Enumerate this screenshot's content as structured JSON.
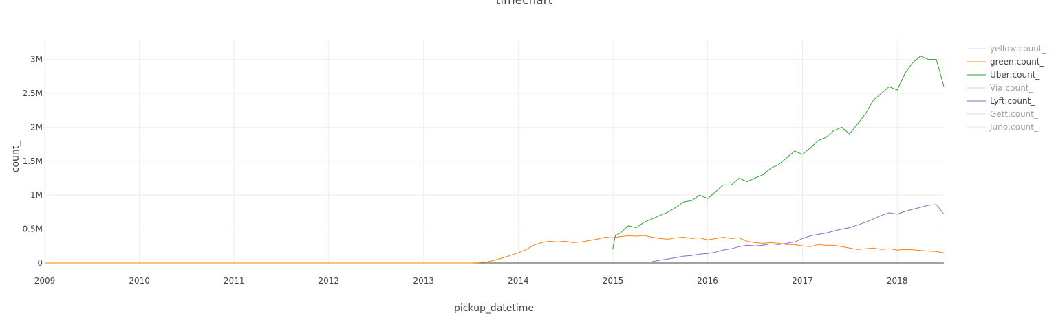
{
  "chart_data": {
    "type": "line",
    "title": "timechart",
    "xlabel": "pickup_datetime",
    "ylabel": "count_",
    "xlim": [
      "2009-01-01",
      "2018-06-30"
    ],
    "ylim": [
      0,
      3300000
    ],
    "x_ticks": [
      "2009",
      "2010",
      "2011",
      "2012",
      "2013",
      "2014",
      "2015",
      "2016",
      "2017",
      "2018"
    ],
    "y_ticks": [
      {
        "value": 0,
        "label": "0"
      },
      {
        "value": 500000,
        "label": "0.5M"
      },
      {
        "value": 1000000,
        "label": "1M"
      },
      {
        "value": 1500000,
        "label": "1.5M"
      },
      {
        "value": 2000000,
        "label": "2M"
      },
      {
        "value": 2500000,
        "label": "2.5M"
      },
      {
        "value": 3000000,
        "label": "3M"
      }
    ],
    "grid": true,
    "legend_position": "right",
    "series": [
      {
        "name": "yellow:count_",
        "color": "#1f77b4",
        "visible": false,
        "points": []
      },
      {
        "name": "green:count_",
        "color": "#ff7f0e",
        "visible": true,
        "points": [
          [
            "2009-01-01",
            0
          ],
          [
            "2013-07-01",
            0
          ],
          [
            "2013-08-01",
            4000
          ],
          [
            "2013-09-01",
            15000
          ],
          [
            "2013-10-01",
            40000
          ],
          [
            "2013-11-01",
            75000
          ],
          [
            "2013-12-01",
            110000
          ],
          [
            "2014-01-01",
            150000
          ],
          [
            "2014-02-01",
            200000
          ],
          [
            "2014-03-01",
            260000
          ],
          [
            "2014-04-01",
            300000
          ],
          [
            "2014-05-01",
            320000
          ],
          [
            "2014-06-01",
            310000
          ],
          [
            "2014-07-01",
            320000
          ],
          [
            "2014-08-01",
            300000
          ],
          [
            "2014-09-01",
            310000
          ],
          [
            "2014-10-01",
            330000
          ],
          [
            "2014-11-01",
            350000
          ],
          [
            "2014-12-01",
            380000
          ],
          [
            "2015-01-01",
            370000
          ],
          [
            "2015-02-01",
            390000
          ],
          [
            "2015-03-01",
            400000
          ],
          [
            "2015-04-01",
            395000
          ],
          [
            "2015-05-01",
            405000
          ],
          [
            "2015-06-01",
            380000
          ],
          [
            "2015-07-01",
            360000
          ],
          [
            "2015-08-01",
            350000
          ],
          [
            "2015-09-01",
            370000
          ],
          [
            "2015-10-01",
            380000
          ],
          [
            "2015-11-01",
            360000
          ],
          [
            "2015-12-01",
            370000
          ],
          [
            "2016-01-01",
            340000
          ],
          [
            "2016-02-01",
            360000
          ],
          [
            "2016-03-01",
            380000
          ],
          [
            "2016-04-01",
            360000
          ],
          [
            "2016-05-01",
            370000
          ],
          [
            "2016-06-01",
            320000
          ],
          [
            "2016-07-01",
            300000
          ],
          [
            "2016-08-01",
            290000
          ],
          [
            "2016-09-01",
            300000
          ],
          [
            "2016-10-01",
            290000
          ],
          [
            "2016-11-01",
            270000
          ],
          [
            "2016-12-01",
            270000
          ],
          [
            "2017-01-01",
            250000
          ],
          [
            "2017-02-01",
            240000
          ],
          [
            "2017-03-01",
            270000
          ],
          [
            "2017-04-01",
            260000
          ],
          [
            "2017-05-01",
            260000
          ],
          [
            "2017-06-01",
            240000
          ],
          [
            "2017-07-01",
            220000
          ],
          [
            "2017-08-01",
            200000
          ],
          [
            "2017-09-01",
            210000
          ],
          [
            "2017-10-01",
            220000
          ],
          [
            "2017-11-01",
            200000
          ],
          [
            "2017-12-01",
            210000
          ],
          [
            "2018-01-01",
            190000
          ],
          [
            "2018-02-01",
            200000
          ],
          [
            "2018-03-01",
            195000
          ],
          [
            "2018-04-01",
            185000
          ],
          [
            "2018-05-01",
            175000
          ],
          [
            "2018-06-01",
            170000
          ],
          [
            "2018-06-30",
            150000
          ]
        ]
      },
      {
        "name": "Uber:count_",
        "color": "#2ca02c",
        "visible": true,
        "points": [
          [
            "2014-12-31",
            200000
          ],
          [
            "2015-01-10",
            400000
          ],
          [
            "2015-02-01",
            450000
          ],
          [
            "2015-03-01",
            550000
          ],
          [
            "2015-04-01",
            520000
          ],
          [
            "2015-05-01",
            600000
          ],
          [
            "2015-06-01",
            650000
          ],
          [
            "2015-07-01",
            700000
          ],
          [
            "2015-08-01",
            750000
          ],
          [
            "2015-09-01",
            820000
          ],
          [
            "2015-10-01",
            900000
          ],
          [
            "2015-11-01",
            920000
          ],
          [
            "2015-12-01",
            1000000
          ],
          [
            "2016-01-01",
            950000
          ],
          [
            "2016-02-01",
            1050000
          ],
          [
            "2016-03-01",
            1150000
          ],
          [
            "2016-04-01",
            1150000
          ],
          [
            "2016-05-01",
            1250000
          ],
          [
            "2016-06-01",
            1200000
          ],
          [
            "2016-07-01",
            1250000
          ],
          [
            "2016-08-01",
            1300000
          ],
          [
            "2016-09-01",
            1400000
          ],
          [
            "2016-10-01",
            1450000
          ],
          [
            "2016-11-01",
            1550000
          ],
          [
            "2016-12-01",
            1650000
          ],
          [
            "2017-01-01",
            1600000
          ],
          [
            "2017-02-01",
            1700000
          ],
          [
            "2017-03-01",
            1800000
          ],
          [
            "2017-04-01",
            1850000
          ],
          [
            "2017-05-01",
            1950000
          ],
          [
            "2017-06-01",
            2000000
          ],
          [
            "2017-07-01",
            1900000
          ],
          [
            "2017-08-01",
            2050000
          ],
          [
            "2017-09-01",
            2200000
          ],
          [
            "2017-10-01",
            2400000
          ],
          [
            "2017-11-01",
            2500000
          ],
          [
            "2017-12-01",
            2600000
          ],
          [
            "2018-01-01",
            2550000
          ],
          [
            "2018-02-01",
            2800000
          ],
          [
            "2018-03-01",
            2950000
          ],
          [
            "2018-04-01",
            3050000
          ],
          [
            "2018-05-01",
            3000000
          ],
          [
            "2018-06-01",
            3000000
          ],
          [
            "2018-06-30",
            2600000
          ]
        ]
      },
      {
        "name": "Via:count_",
        "color": "#d62728",
        "visible": false,
        "points": []
      },
      {
        "name": "Lyft:count_",
        "color": "#9467bd",
        "visible": true,
        "points": [
          [
            "2015-06-01",
            20000
          ],
          [
            "2015-07-01",
            40000
          ],
          [
            "2015-08-01",
            60000
          ],
          [
            "2015-09-01",
            80000
          ],
          [
            "2015-10-01",
            100000
          ],
          [
            "2015-11-01",
            110000
          ],
          [
            "2015-12-01",
            130000
          ],
          [
            "2016-01-01",
            140000
          ],
          [
            "2016-02-01",
            160000
          ],
          [
            "2016-03-01",
            190000
          ],
          [
            "2016-04-01",
            210000
          ],
          [
            "2016-05-01",
            240000
          ],
          [
            "2016-06-01",
            260000
          ],
          [
            "2016-07-01",
            250000
          ],
          [
            "2016-08-01",
            260000
          ],
          [
            "2016-09-01",
            280000
          ],
          [
            "2016-10-01",
            270000
          ],
          [
            "2016-11-01",
            290000
          ],
          [
            "2016-12-01",
            310000
          ],
          [
            "2017-01-01",
            360000
          ],
          [
            "2017-02-01",
            400000
          ],
          [
            "2017-03-01",
            420000
          ],
          [
            "2017-04-01",
            440000
          ],
          [
            "2017-05-01",
            470000
          ],
          [
            "2017-06-01",
            500000
          ],
          [
            "2017-07-01",
            520000
          ],
          [
            "2017-08-01",
            560000
          ],
          [
            "2017-09-01",
            600000
          ],
          [
            "2017-10-01",
            650000
          ],
          [
            "2017-11-01",
            700000
          ],
          [
            "2017-12-01",
            740000
          ],
          [
            "2018-01-01",
            720000
          ],
          [
            "2018-02-01",
            760000
          ],
          [
            "2018-03-01",
            790000
          ],
          [
            "2018-04-01",
            820000
          ],
          [
            "2018-05-01",
            850000
          ],
          [
            "2018-06-01",
            860000
          ],
          [
            "2018-06-30",
            720000
          ]
        ]
      },
      {
        "name": "Gett:count_",
        "color": "#8c564b",
        "visible": false,
        "points": []
      },
      {
        "name": "Juno:count_",
        "color": "#e377c2",
        "visible": false,
        "points": []
      }
    ]
  }
}
